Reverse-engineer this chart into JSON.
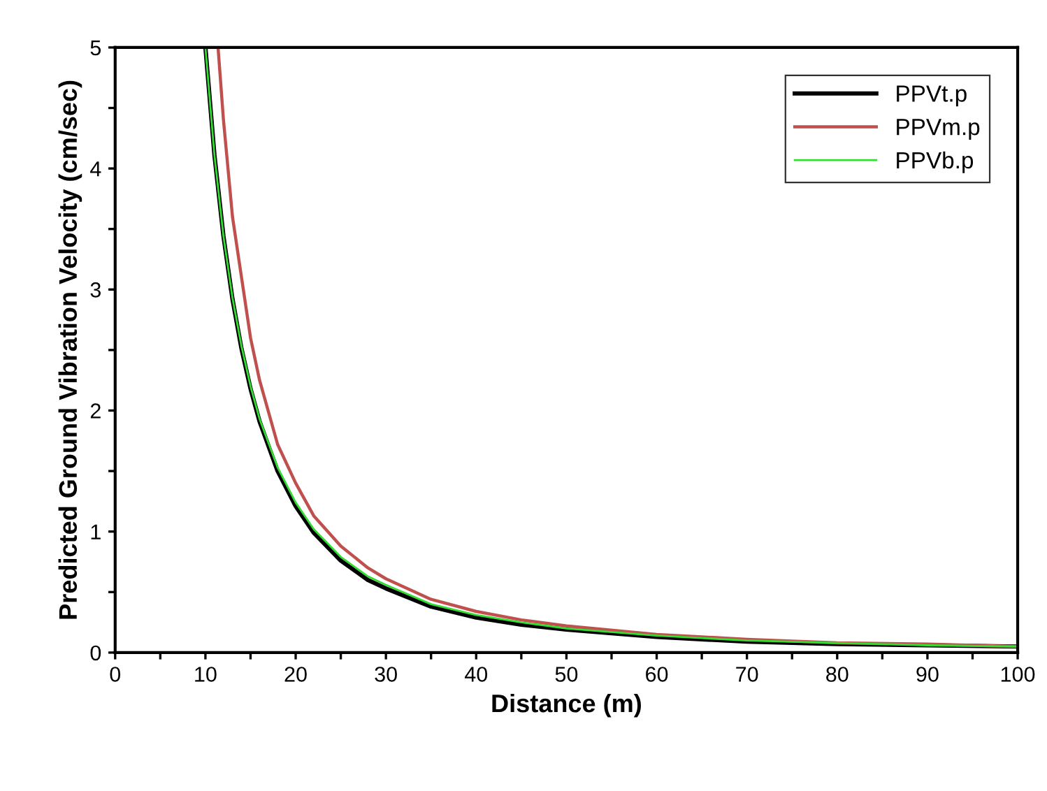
{
  "chart_data": {
    "type": "line",
    "xlabel": "Distance (m)",
    "ylabel": "Predicted Ground Vibration Velocity (cm/sec)",
    "xlim": [
      0,
      100
    ],
    "ylim": [
      0,
      5
    ],
    "xticks": [
      0,
      {
        "value": 5,
        "label": null
      },
      10,
      {
        "value": 15,
        "label": null
      },
      20,
      {
        "value": 25,
        "label": null
      },
      30,
      {
        "value": 35,
        "label": null
      },
      40,
      {
        "value": 45,
        "label": null
      },
      50,
      {
        "value": 55,
        "label": null
      },
      60,
      {
        "value": 65,
        "label": null
      },
      70,
      {
        "value": 75,
        "label": null
      },
      80,
      {
        "value": 85,
        "label": null
      },
      90,
      {
        "value": 95,
        "label": null
      },
      100
    ],
    "yticks": [
      0,
      {
        "value": 0.5,
        "label": null
      },
      1,
      {
        "value": 1.5,
        "label": null
      },
      2,
      {
        "value": 2.5,
        "label": null
      },
      3,
      {
        "value": 3.5,
        "label": null
      },
      4,
      {
        "value": 4.5,
        "label": null
      },
      5
    ],
    "grid": false,
    "legend": "top right",
    "marker": "none",
    "line_style": "solid",
    "series": [
      {
        "name": "PPVt.p",
        "color": "#000000",
        "x": [
          10,
          11,
          12,
          13,
          14,
          15,
          16,
          18,
          20,
          22,
          25,
          28,
          30,
          35,
          40,
          45,
          50,
          60,
          70,
          80,
          90,
          100
        ],
        "values": [
          5.0,
          4.11,
          3.44,
          2.92,
          2.51,
          2.18,
          1.91,
          1.5,
          1.21,
          0.99,
          0.76,
          0.6,
          0.53,
          0.38,
          0.29,
          0.23,
          0.19,
          0.13,
          0.09,
          0.07,
          0.06,
          0.05
        ]
      },
      {
        "name": "PPVm.p",
        "color": "#c0504d",
        "x": [
          11.4,
          12,
          13,
          14,
          15,
          16,
          18,
          20,
          22,
          25,
          28,
          30,
          35,
          40,
          45,
          50,
          60,
          70,
          80,
          90,
          100
        ],
        "values": [
          5.0,
          4.4,
          3.6,
          3.1,
          2.6,
          2.25,
          1.72,
          1.4,
          1.13,
          0.88,
          0.7,
          0.61,
          0.44,
          0.34,
          0.27,
          0.22,
          0.15,
          0.11,
          0.08,
          0.07,
          0.05
        ]
      },
      {
        "name": "PPVb.p",
        "color": "#33dd33",
        "x": [
          10,
          11,
          12,
          13,
          14,
          15,
          16,
          18,
          20,
          22,
          25,
          28,
          30,
          35,
          40,
          45,
          50,
          60,
          70,
          80,
          90,
          100
        ],
        "values": [
          5.0,
          4.11,
          3.44,
          2.93,
          2.53,
          2.2,
          1.93,
          1.53,
          1.24,
          1.02,
          0.79,
          0.63,
          0.56,
          0.4,
          0.31,
          0.25,
          0.2,
          0.14,
          0.1,
          0.08,
          0.06,
          0.05
        ]
      }
    ]
  }
}
